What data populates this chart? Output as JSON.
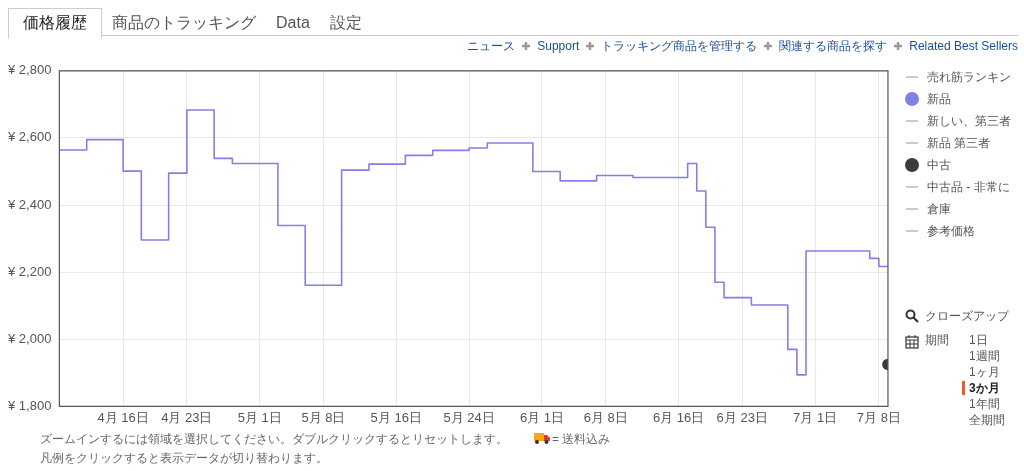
{
  "chart_data": {
    "type": "step",
    "xlim": [
      "--04-09",
      "--07-09"
    ],
    "xticks": [
      {
        "value": "--04-16",
        "label": "4月 16日"
      },
      {
        "value": "--04-23",
        "label": "4月 23日"
      },
      {
        "value": "--05-01",
        "label": "5月 1日"
      },
      {
        "value": "--05-08",
        "label": "5月 8日"
      },
      {
        "value": "--05-16",
        "label": "5月 16日"
      },
      {
        "value": "--05-24",
        "label": "5月 24日"
      },
      {
        "value": "--06-01",
        "label": "6月 1日"
      },
      {
        "value": "--06-08",
        "label": "6月 8日"
      },
      {
        "value": "--06-16",
        "label": "6月 16日"
      },
      {
        "value": "--06-23",
        "label": "6月 23日"
      },
      {
        "value": "--07-01",
        "label": "7月 1日"
      },
      {
        "value": "--07-08",
        "label": "7月 8日"
      }
    ],
    "ylim": [
      1800,
      2800
    ],
    "yticks": [
      {
        "value": 1800,
        "label": "¥ 1,800"
      },
      {
        "value": 2000,
        "label": "¥ 2,000"
      },
      {
        "value": 2200,
        "label": "¥ 2,200"
      },
      {
        "value": 2400,
        "label": "¥ 2,400"
      },
      {
        "value": 2600,
        "label": "¥ 2,600"
      },
      {
        "value": 2800,
        "label": "¥ 2,800"
      }
    ],
    "grid": true,
    "legend": "right",
    "line_style": "solid",
    "series": [
      {
        "name": "売れ筋ランキン",
        "color": "#c8c8c8"
      },
      {
        "name": "新品",
        "color": "#8080e6",
        "marker": "none",
        "x": [
          "--04-09",
          "--04-12",
          "--04-16",
          "--04-18",
          "--04-21",
          "--04-23",
          "--04-26",
          "--04-28",
          "--05-03",
          "--05-06",
          "--05-10",
          "--05-13",
          "--05-17",
          "--05-20",
          "--05-24",
          "--05-26",
          "--05-31",
          "--06-03",
          "--06-07",
          "--06-11",
          "--06-17",
          "--06-18",
          "--06-19",
          "--06-20",
          "--06-21",
          "--06-24",
          "--06-28",
          "--06-29",
          "--06-30",
          "--07-07",
          "--07-08",
          "--07-09"
        ],
        "values": [
          2564,
          2595,
          2501,
          2296,
          2495,
          2683,
          2539,
          2524,
          2339,
          2161,
          2504,
          2522,
          2548,
          2563,
          2570,
          2585,
          2500,
          2472,
          2488,
          2482,
          2524,
          2442,
          2334,
          2170,
          2124,
          2102,
          1970,
          1894,
          2263,
          2241,
          2217,
          2217
        ]
      },
      {
        "name": "新しい、第三者",
        "color": "#c8c8c8"
      },
      {
        "name": "新品 第三者",
        "color": "#c8c8c8"
      },
      {
        "name": "中古",
        "color": "#3c3c3c",
        "type": "scatter",
        "marker": "circle",
        "x": [
          "--07-09"
        ],
        "values": [
          1925
        ]
      },
      {
        "name": "中古品 - 非常に",
        "color": "#c8c8c8"
      },
      {
        "name": "倉庫",
        "color": "#c8c8c8"
      },
      {
        "name": "参考価格",
        "color": "#c8c8c8"
      }
    ],
    "annotations": [
      "価格履歴",
      "商品のトラッキング",
      "Data",
      "設定",
      "ニュース",
      "Support",
      "トラッキング商品を管理する",
      "関連する商品を探す",
      "Related Best Sellers",
      "クローズアップ",
      "期間",
      "1日",
      "1週間",
      "1ヶ月",
      "3か月",
      "1年間",
      "全期間",
      "ズームインするには領域を選択してください。ダブルクリックするとリセットします。",
      "= 送料込み",
      "凡例をクリックすると表示データが切り替わります。"
    ]
  }
}
